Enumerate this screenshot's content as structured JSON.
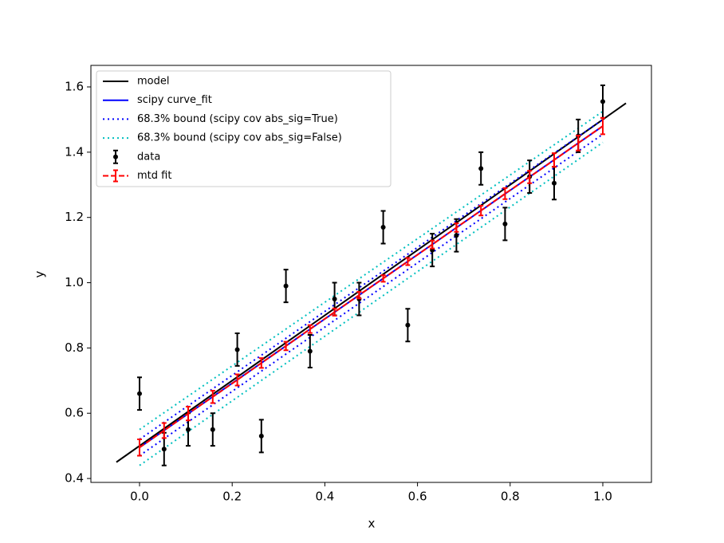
{
  "chart_data": {
    "type": "line",
    "xlabel": "x",
    "ylabel": "y",
    "xlim": [
      -0.105,
      1.105
    ],
    "ylim": [
      0.388,
      1.666
    ],
    "xticks": [
      {
        "value": 0,
        "label": "0.0"
      },
      {
        "value": 0.2,
        "label": "0.2"
      },
      {
        "value": 0.4,
        "label": "0.4"
      },
      {
        "value": 0.6,
        "label": "0.6"
      },
      {
        "value": 0.8,
        "label": "0.8"
      },
      {
        "value": 1.0,
        "label": "1.0"
      }
    ],
    "yticks": [
      {
        "value": 0.4,
        "label": "0.4"
      },
      {
        "value": 0.6,
        "label": "0.6"
      },
      {
        "value": 0.8,
        "label": "0.8"
      },
      {
        "value": 1.0,
        "label": "1.0"
      },
      {
        "value": 1.2,
        "label": "1.2"
      },
      {
        "value": 1.4,
        "label": "1.4"
      },
      {
        "value": 1.6,
        "label": "1.6"
      }
    ],
    "legend": "upper left",
    "series": [
      {
        "name": "model",
        "kind": "line",
        "color": "#000000",
        "style": "solid",
        "x": [
          -0.05,
          1.05
        ],
        "values": [
          0.45,
          1.55
        ]
      },
      {
        "name": "scipy curve_fit",
        "kind": "line",
        "color": "#0000ff",
        "style": "solid",
        "x": [
          0,
          1
        ],
        "values": [
          0.495,
          1.48
        ]
      },
      {
        "name": "68.3% bound (scipy cov abs_sig=True)",
        "kind": "band",
        "color": "#0000ff",
        "style": "dotted",
        "x": [
          0,
          1
        ],
        "upper": [
          0.52,
          1.5
        ],
        "lower": [
          0.47,
          1.455
        ]
      },
      {
        "name": "68.3% bound (scipy cov abs_sig=False)",
        "kind": "band",
        "color": "#00bfbf",
        "style": "dotted",
        "x": [
          0,
          1
        ],
        "upper": [
          0.55,
          1.525
        ],
        "lower": [
          0.44,
          1.43
        ]
      },
      {
        "name": "data",
        "kind": "points",
        "color": "#000000",
        "style": "none",
        "x": [
          0,
          0.053,
          0.105,
          0.158,
          0.211,
          0.263,
          0.316,
          0.368,
          0.421,
          0.474,
          0.526,
          0.579,
          0.632,
          0.684,
          0.737,
          0.789,
          0.842,
          0.895,
          0.947,
          1
        ],
        "values": [
          0.66,
          0.49,
          0.55,
          0.55,
          0.795,
          0.53,
          0.99,
          0.79,
          0.95,
          0.95,
          1.17,
          0.87,
          1.1,
          1.145,
          1.35,
          1.18,
          1.325,
          1.305,
          1.45,
          1.555
        ],
        "errors": [
          0.05,
          0.05,
          0.05,
          0.05,
          0.05,
          0.05,
          0.05,
          0.05,
          0.05,
          0.05,
          0.05,
          0.05,
          0.05,
          0.05,
          0.05,
          0.05,
          0.05,
          0.05,
          0.05,
          0.05
        ]
      },
      {
        "name": "mtd fit",
        "kind": "errline",
        "color": "#ff0000",
        "style": "dashed",
        "x": [
          0,
          0.053,
          0.105,
          0.158,
          0.211,
          0.263,
          0.316,
          0.368,
          0.421,
          0.474,
          0.526,
          0.579,
          0.632,
          0.684,
          0.737,
          0.789,
          0.842,
          0.895,
          0.947,
          1
        ],
        "values": [
          0.495,
          0.547,
          0.599,
          0.65,
          0.702,
          0.754,
          0.806,
          0.858,
          0.91,
          0.962,
          1.013,
          1.065,
          1.117,
          1.169,
          1.221,
          1.273,
          1.324,
          1.376,
          1.428,
          1.48
        ],
        "errors": [
          0.025,
          0.023,
          0.021,
          0.019,
          0.017,
          0.015,
          0.013,
          0.012,
          0.011,
          0.01,
          0.01,
          0.011,
          0.012,
          0.013,
          0.015,
          0.017,
          0.019,
          0.021,
          0.023,
          0.025
        ]
      }
    ]
  }
}
